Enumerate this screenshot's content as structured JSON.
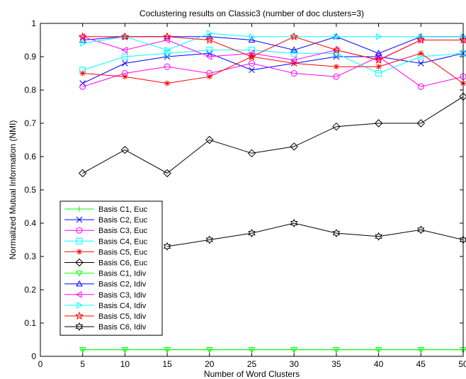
{
  "chart_data": {
    "type": "line",
    "title": "Coclustering results on Classic3 (number of doc clusters=3)",
    "xlabel": "Number of Word Clusters",
    "ylabel": "Normalized Mutual Information (NMI)",
    "xlim": [
      0,
      50
    ],
    "ylim": [
      0,
      1
    ],
    "xticks": [
      "0",
      "5",
      "10",
      "15",
      "20",
      "25",
      "30",
      "35",
      "40",
      "45",
      "50"
    ],
    "yticks": [
      "0",
      "0.1",
      "0.2",
      "0.3",
      "0.4",
      "0.5",
      "0.6",
      "0.7",
      "0.8",
      "0.9",
      "1"
    ],
    "grid": false,
    "legend_position": "left",
    "x": [
      5,
      10,
      15,
      20,
      25,
      30,
      35,
      40,
      45,
      50
    ],
    "series": [
      {
        "name": "Basis C1, Euc",
        "color": "#00ff00",
        "marker": "plus",
        "values": [
          0.02,
          0.02,
          0.02,
          0.02,
          0.02,
          0.02,
          0.02,
          0.02,
          0.02,
          0.02
        ]
      },
      {
        "name": "Basis C2, Euc",
        "color": "#0000ff",
        "marker": "x",
        "values": [
          0.82,
          0.88,
          0.9,
          0.91,
          0.86,
          0.88,
          0.9,
          0.9,
          0.88,
          0.91
        ]
      },
      {
        "name": "Basis C3, Euc",
        "color": "#ff00ff",
        "marker": "circle",
        "values": [
          0.81,
          0.85,
          0.87,
          0.85,
          0.88,
          0.85,
          0.84,
          0.9,
          0.81,
          0.84
        ]
      },
      {
        "name": "Basis C4, Euc",
        "color": "#00ffff",
        "marker": "square",
        "values": [
          0.86,
          0.9,
          0.91,
          0.92,
          0.92,
          0.91,
          0.91,
          0.85,
          0.9,
          0.91
        ]
      },
      {
        "name": "Basis C5, Euc",
        "color": "#ff0000",
        "marker": "asterisk",
        "values": [
          0.85,
          0.84,
          0.82,
          0.84,
          0.9,
          0.88,
          0.87,
          0.87,
          0.91,
          0.82
        ]
      },
      {
        "name": "Basis C6, Euc",
        "color": "#000000",
        "marker": "diamond",
        "values": [
          0.55,
          0.62,
          0.55,
          0.65,
          0.61,
          0.63,
          0.69,
          0.7,
          0.7,
          0.78
        ]
      },
      {
        "name": "Basis C1, Idiv",
        "color": "#00ff00",
        "marker": "triangle-down",
        "values": [
          0.02,
          0.02,
          0.02,
          0.02,
          0.02,
          0.02,
          0.02,
          0.02,
          0.02,
          0.02
        ]
      },
      {
        "name": "Basis C2, Idiv",
        "color": "#0000ff",
        "marker": "triangle-up",
        "values": [
          0.95,
          0.96,
          0.96,
          0.96,
          0.95,
          0.92,
          0.96,
          0.91,
          0.96,
          0.96
        ]
      },
      {
        "name": "Basis C3, Idiv",
        "color": "#ff00ff",
        "marker": "triangle-left",
        "values": [
          0.96,
          0.92,
          0.95,
          0.9,
          0.91,
          0.89,
          0.92,
          0.89,
          0.95,
          0.95
        ]
      },
      {
        "name": "Basis C4, Idiv",
        "color": "#00ffff",
        "marker": "triangle-right",
        "values": [
          0.94,
          0.96,
          0.92,
          0.97,
          0.96,
          0.96,
          0.96,
          0.96,
          0.96,
          0.96
        ]
      },
      {
        "name": "Basis C5, Idiv",
        "color": "#ff0000",
        "marker": "star",
        "values": [
          0.96,
          0.96,
          0.96,
          0.95,
          0.9,
          0.96,
          0.92,
          0.89,
          0.95,
          0.95
        ]
      },
      {
        "name": "Basis C6, Idiv",
        "color": "#000000",
        "marker": "hexagram",
        "values": [
          null,
          null,
          0.33,
          0.35,
          0.37,
          0.4,
          0.37,
          0.36,
          0.38,
          0.35
        ]
      }
    ]
  }
}
